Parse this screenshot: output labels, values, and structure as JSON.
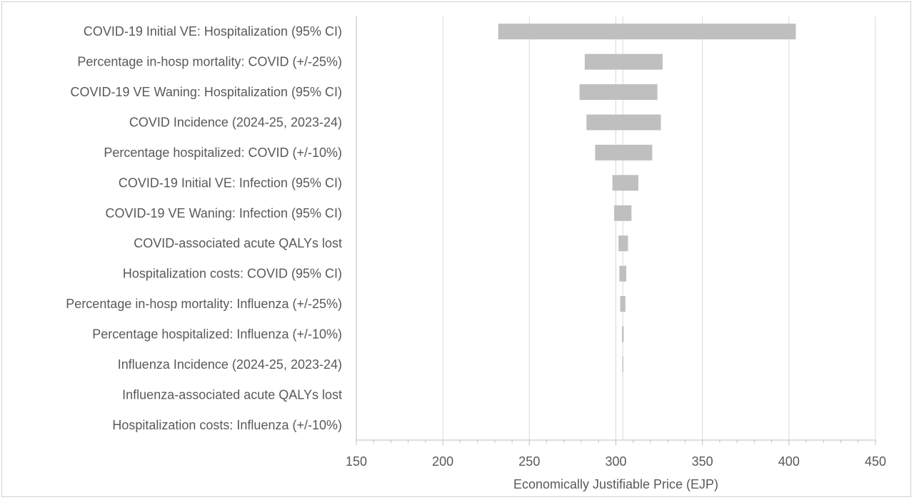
{
  "chart_data": {
    "type": "bar",
    "orientation": "horizontal",
    "subtype": "tornado",
    "title": "",
    "xlabel": "Economically Justifiable Price (EJP)",
    "ylabel": "",
    "xlim": [
      150,
      450
    ],
    "xticks": [
      150,
      200,
      250,
      300,
      350,
      400,
      450
    ],
    "baseline": 304,
    "grid": "vertical",
    "bar_color": "#bfbfbf",
    "categories": [
      "COVID-19 Initial VE: Hospitalization (95% CI)",
      "Percentage in-hosp mortality: COVID (+/-25%)",
      "COVID-19 VE Waning: Hospitalization (95% CI)",
      "COVID Incidence (2024-25, 2023-24)",
      "Percentage hospitalized: COVID (+/-10%)",
      "COVID-19 Initial VE: Infection (95% CI)",
      "COVID-19 VE Waning: Infection (95% CI)",
      "COVID-associated acute QALYs lost",
      "Hospitalization costs: COVID (95% CI)",
      "Percentage in-hosp mortality: Influenza (+/-25%)",
      "Percentage hospitalized: Influenza (+/-10%)",
      "Influenza Incidence (2024-25, 2023-24)",
      "Influenza-associated acute QALYs lost",
      "Hospitalization costs: Influenza (+/-10%)"
    ],
    "low": [
      232,
      282,
      279,
      283,
      288,
      298,
      299,
      301.5,
      302,
      302.5,
      303.5,
      303.7,
      304,
      304
    ],
    "high": [
      404,
      327,
      324,
      326,
      321,
      313,
      309,
      307,
      306,
      305.5,
      304.5,
      304.3,
      304,
      304
    ]
  }
}
